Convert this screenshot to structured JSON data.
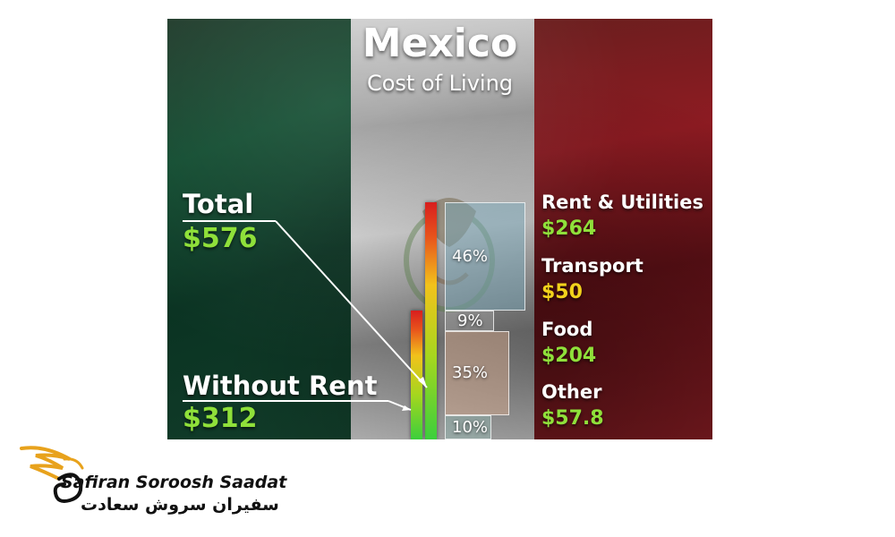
{
  "chart_data": {
    "type": "bar",
    "title": "Mexico",
    "subtitle": "Cost of Living",
    "total": {
      "label": "Total",
      "value_label": "$576",
      "value": 576
    },
    "without_rent": {
      "label": "Without Rent",
      "value_label": "$312",
      "value": 312
    },
    "categories": [
      {
        "name": "Rent & Utilities",
        "value_label": "$264",
        "value": 264,
        "percent": 46,
        "percent_label": "46%",
        "value_color": "#8fe03a"
      },
      {
        "name": "Transport",
        "value_label": "$50",
        "value": 50,
        "percent": 9,
        "percent_label": "9%",
        "value_color": "#f2d21b"
      },
      {
        "name": "Food",
        "value_label": "$204",
        "value": 204,
        "percent": 35,
        "percent_label": "35%",
        "value_color": "#8fe03a"
      },
      {
        "name": "Other",
        "value_label": "$57.8",
        "value": 57.8,
        "percent": 10,
        "percent_label": "10%",
        "value_color": "#8fe03a"
      }
    ]
  },
  "logo": {
    "name_en": "Safiran Soroosh Saadat",
    "name_fa": "سفیران سروش سعادت",
    "colors": {
      "gold": "#e8a21c",
      "dark": "#111111"
    }
  },
  "flag_colors": {
    "green": "#0f4a2e",
    "white": "#c9c9c9",
    "red": "#8e1b22"
  }
}
